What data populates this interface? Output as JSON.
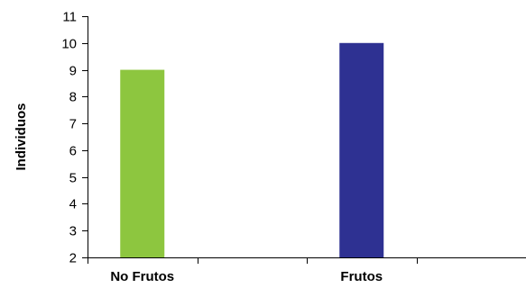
{
  "chart_data": {
    "type": "bar",
    "categories": [
      "No Frutos",
      "Frutos"
    ],
    "values": [
      9,
      10
    ],
    "colors": [
      "#8dc63f",
      "#2e3192"
    ],
    "xlabel": "",
    "ylabel": "Individuos",
    "ylim": [
      2,
      11
    ],
    "yticks": [
      2,
      3,
      4,
      5,
      6,
      7,
      8,
      9,
      10,
      11
    ],
    "grid": false,
    "legend": "none"
  }
}
